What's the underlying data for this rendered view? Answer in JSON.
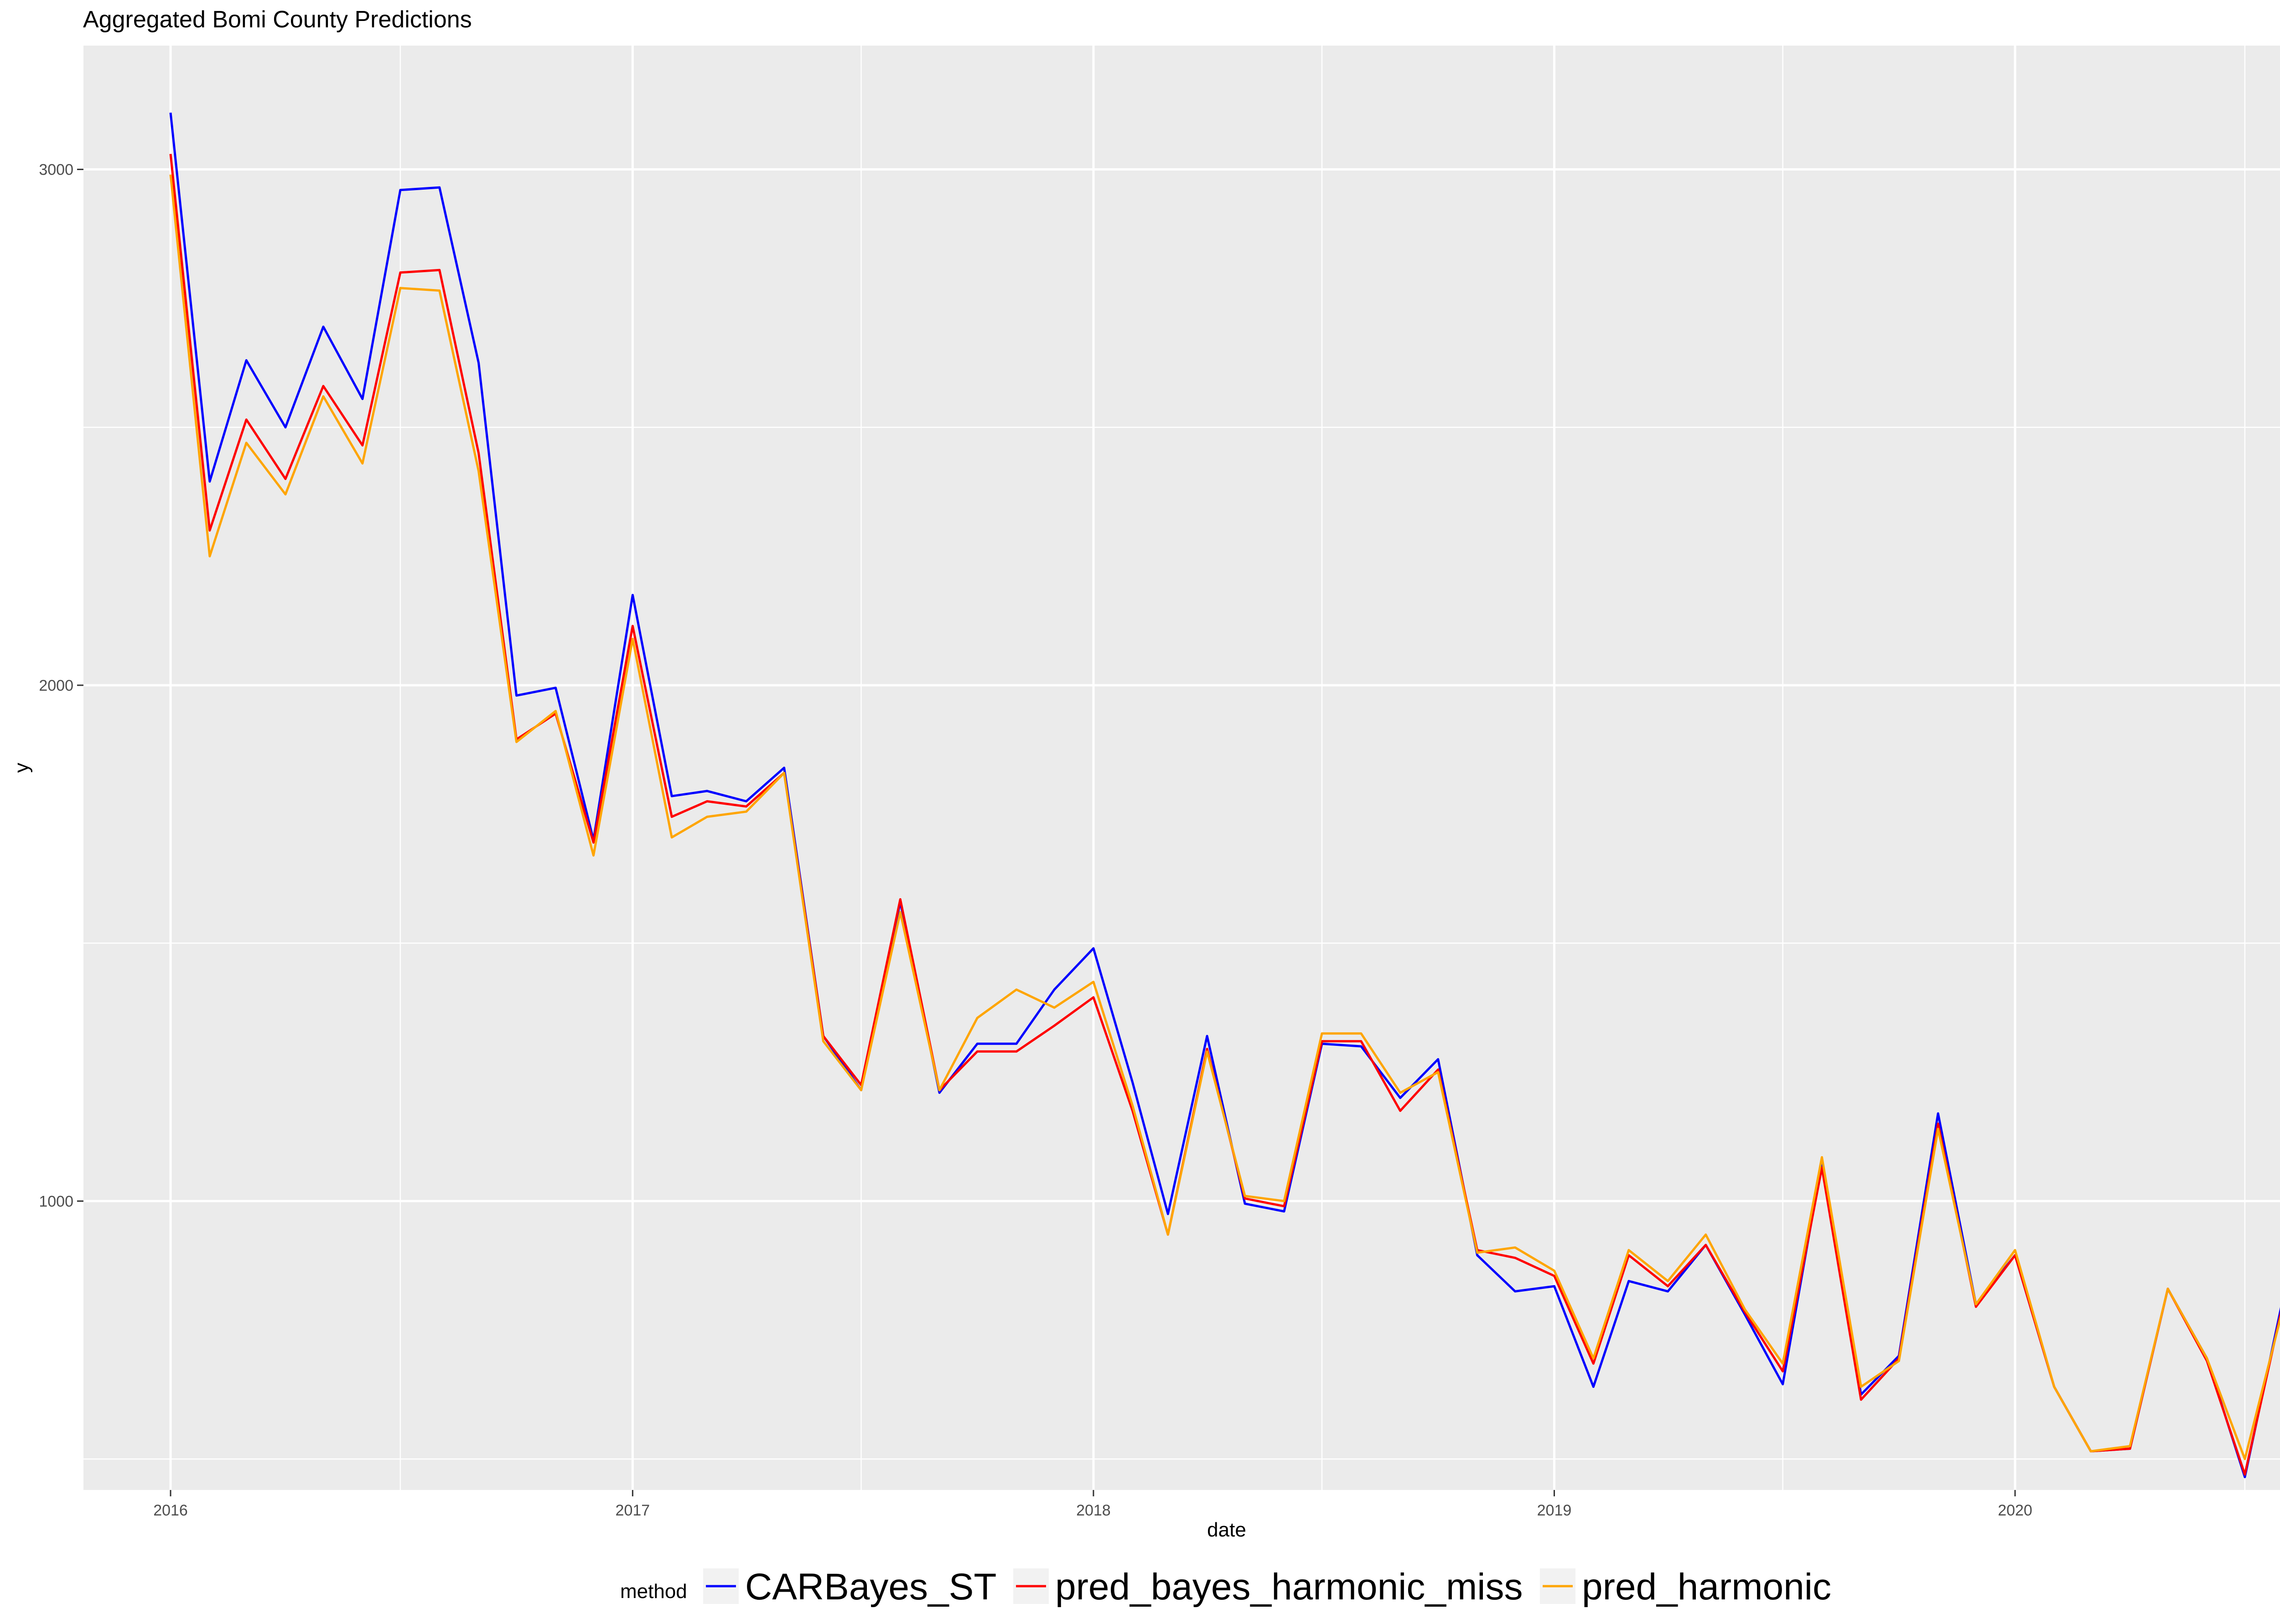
{
  "chart_data": {
    "type": "line",
    "title": "Aggregated Bomi County Predictions",
    "xlabel": "date",
    "ylabel": "y",
    "x_tick_labels": [
      "2016",
      "2017",
      "2018",
      "2019",
      "2020"
    ],
    "y_tick_labels": [
      "1000",
      "2000",
      "3000"
    ],
    "y_ticks": [
      1000,
      2000,
      3000
    ],
    "ylim": [
      440,
      3240
    ],
    "xlim": [
      "2015-10-24",
      "2020-10-08"
    ],
    "grid": true,
    "legend_position": "bottom",
    "legend_title": "method",
    "dates": [
      "2016-01-01",
      "2016-02-01",
      "2016-03-01",
      "2016-04-01",
      "2016-05-01",
      "2016-06-01",
      "2016-07-01",
      "2016-08-01",
      "2016-09-01",
      "2016-10-01",
      "2016-11-01",
      "2016-12-01",
      "2017-01-01",
      "2017-02-01",
      "2017-03-01",
      "2017-04-01",
      "2017-05-01",
      "2017-06-01",
      "2017-07-01",
      "2017-08-01",
      "2017-09-01",
      "2017-10-01",
      "2017-11-01",
      "2017-12-01",
      "2018-01-01",
      "2018-02-01",
      "2018-03-01",
      "2018-04-01",
      "2018-05-01",
      "2018-06-01",
      "2018-07-01",
      "2018-08-01",
      "2018-09-01",
      "2018-10-01",
      "2018-11-01",
      "2018-12-01",
      "2019-01-01",
      "2019-02-01",
      "2019-03-01",
      "2019-04-01",
      "2019-05-01",
      "2019-06-01",
      "2019-07-01",
      "2019-08-01",
      "2019-09-01",
      "2019-10-01",
      "2019-11-01",
      "2019-12-01",
      "2020-01-01",
      "2020-02-01",
      "2020-03-01",
      "2020-04-01",
      "2020-05-01",
      "2020-06-01",
      "2020-07-01",
      "2020-08-01"
    ],
    "series": [
      {
        "name": "CARBayes_ST",
        "color": "#0000ff",
        "values": [
          3110,
          2395,
          2630,
          2500,
          2695,
          2555,
          2960,
          2965,
          2625,
          1980,
          1995,
          1700,
          2175,
          1785,
          1795,
          1775,
          1840,
          1320,
          1215,
          1580,
          1210,
          1305,
          1305,
          1410,
          1490,
          1230,
          975,
          1320,
          995,
          980,
          1305,
          1300,
          1200,
          1275,
          895,
          825,
          835,
          640,
          845,
          825,
          915,
          780,
          645,
          1075,
          625,
          700,
          1170,
          800,
          895,
          640,
          515,
          520,
          830,
          695,
          465,
          820
        ],
        "values_note": ""
      },
      {
        "name": "pred_bayes_harmonic_miss",
        "color": "#ff0000",
        "values": [
          3030,
          2300,
          2515,
          2400,
          2580,
          2465,
          2800,
          2805,
          2450,
          1895,
          1945,
          1695,
          2115,
          1745,
          1775,
          1765,
          1830,
          1320,
          1225,
          1585,
          1215,
          1290,
          1290,
          1340,
          1395,
          1175,
          935,
          1295,
          1005,
          990,
          1310,
          1310,
          1175,
          1255,
          905,
          890,
          855,
          685,
          895,
          835,
          915,
          785,
          670,
          1065,
          615,
          695,
          1150,
          795,
          895,
          640,
          515,
          520,
          830,
          690,
          470,
          810
        ],
        "values_note": ""
      },
      {
        "name": "pred_harmonic",
        "color": "#ffa500",
        "values": [
          2990,
          2250,
          2470,
          2370,
          2560,
          2430,
          2770,
          2765,
          2415,
          1890,
          1950,
          1670,
          2090,
          1705,
          1745,
          1755,
          1830,
          1310,
          1215,
          1560,
          1215,
          1355,
          1410,
          1375,
          1425,
          1185,
          935,
          1290,
          1010,
          1000,
          1325,
          1325,
          1210,
          1250,
          900,
          910,
          865,
          695,
          905,
          845,
          935,
          790,
          685,
          1085,
          640,
          690,
          1140,
          800,
          905,
          640,
          515,
          525,
          830,
          695,
          500,
          800
        ],
        "values_note": ""
      }
    ]
  }
}
